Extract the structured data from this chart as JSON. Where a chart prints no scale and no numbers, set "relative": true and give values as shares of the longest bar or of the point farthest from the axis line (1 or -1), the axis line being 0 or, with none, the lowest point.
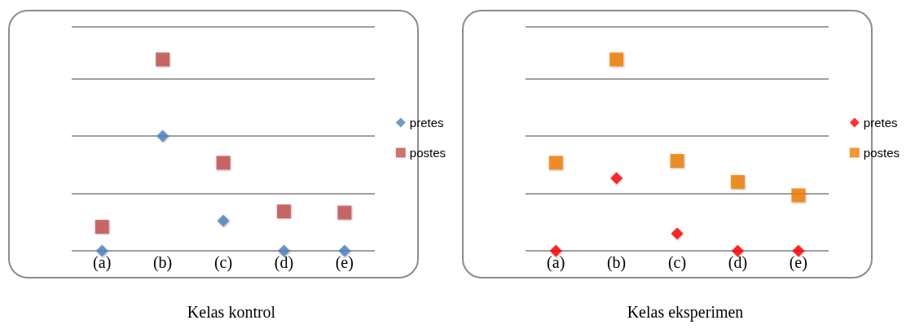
{
  "chart_data": [
    {
      "type": "scatter",
      "title": "Kelas kontrol",
      "categories": [
        "(a)",
        "(b)",
        "(c)",
        "(d)",
        "(e)"
      ],
      "relative": true,
      "grid": "y",
      "legend": "right",
      "series": [
        {
          "name": "pretes",
          "color": "#4f81bd",
          "marker": "diamond",
          "values": [
            0,
            0.6,
            0.157,
            0,
            0
          ]
        },
        {
          "name": "postes",
          "color": "#c0504d",
          "marker": "square",
          "values": [
            0.126,
            1,
            0.46,
            0.206,
            0.2
          ]
        }
      ]
    },
    {
      "type": "scatter",
      "title": "Kelas eksperimen",
      "categories": [
        "(a)",
        "(b)",
        "(c)",
        "(d)",
        "(e)"
      ],
      "relative": true,
      "grid": "y",
      "legend": "right",
      "series": [
        {
          "name": "pretes",
          "color": "#ff0000",
          "marker": "diamond",
          "values": [
            0,
            0.38,
            0.09,
            0,
            0
          ]
        },
        {
          "name": "postes",
          "color": "#f07c00",
          "marker": "square",
          "values": [
            0.46,
            1,
            0.47,
            0.36,
            0.29
          ]
        }
      ]
    }
  ]
}
